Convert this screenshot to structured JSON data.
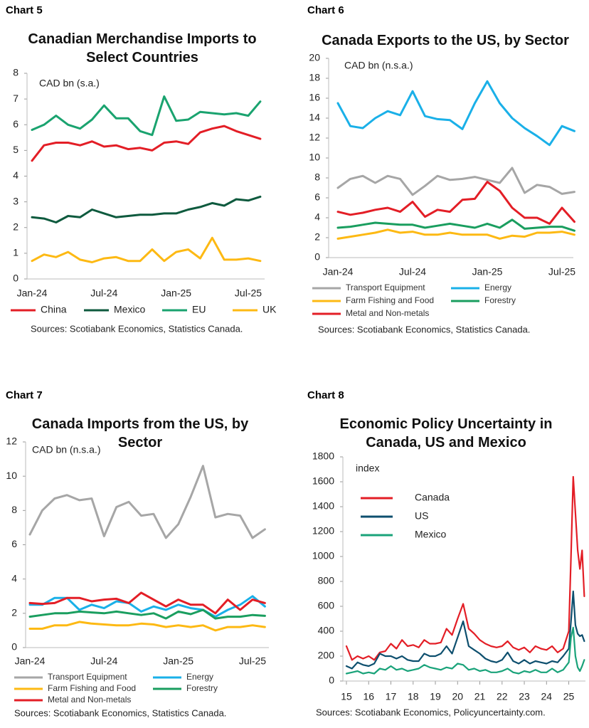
{
  "chart_data": [
    {
      "type": "line",
      "label": "Chart 5",
      "title": "Canadian Merchandise Imports to Select Countries",
      "unit": "CAD bn (s.a.)",
      "source": "Sources: Scotiabank Economics, Statistics Canada.",
      "categories": [
        "Jan-24",
        null,
        null,
        null,
        null,
        null,
        "Jul-24",
        null,
        null,
        null,
        null,
        null,
        "Jan-25",
        null,
        null,
        null,
        null,
        null,
        "Jul-25",
        null
      ],
      "ylim": [
        0,
        8
      ],
      "yticks": [
        0,
        1,
        2,
        3,
        4,
        5,
        6,
        7,
        8
      ],
      "series": [
        {
          "name": "China",
          "color": "#e31e26",
          "values": [
            4.6,
            5.2,
            5.3,
            5.3,
            5.2,
            5.35,
            5.15,
            5.2,
            5.05,
            5.1,
            5.0,
            5.3,
            5.35,
            5.25,
            5.7,
            5.85,
            5.95,
            5.75,
            5.6,
            5.45
          ]
        },
        {
          "name": "Mexico",
          "color": "#0e5a3e",
          "values": [
            2.4,
            2.35,
            2.2,
            2.45,
            2.4,
            2.7,
            2.55,
            2.4,
            2.45,
            2.5,
            2.5,
            2.55,
            2.55,
            2.7,
            2.8,
            2.95,
            2.85,
            3.1,
            3.05,
            3.2
          ]
        },
        {
          "name": "EU",
          "color": "#1aa36f",
          "values": [
            5.8,
            6.0,
            6.35,
            6.0,
            5.85,
            6.2,
            6.75,
            6.25,
            6.25,
            5.75,
            5.6,
            7.1,
            6.15,
            6.2,
            6.5,
            6.45,
            6.4,
            6.45,
            6.35,
            6.9
          ]
        },
        {
          "name": "UK",
          "color": "#fdb913",
          "values": [
            0.7,
            0.95,
            0.85,
            1.05,
            0.75,
            0.65,
            0.8,
            0.85,
            0.7,
            0.7,
            1.15,
            0.7,
            1.05,
            1.15,
            0.8,
            1.6,
            0.75,
            0.75,
            0.8,
            0.7
          ]
        }
      ]
    },
    {
      "type": "line",
      "label": "Chart 6",
      "title": "Canada Exports to the US, by Sector",
      "unit": "CAD bn (n.s.a.)",
      "source": "Sources: Scotiabank Economics, Statistics Canada.",
      "categories": [
        "Jan-24",
        null,
        null,
        null,
        null,
        null,
        "Jul-24",
        null,
        null,
        null,
        null,
        null,
        "Jan-25",
        null,
        null,
        null,
        null,
        null,
        "Jul-25",
        null
      ],
      "ylim": [
        0,
        20
      ],
      "yticks": [
        0,
        2,
        4,
        6,
        8,
        10,
        12,
        14,
        16,
        18,
        20
      ],
      "series": [
        {
          "name": "Transport Equipment",
          "color": "#a6a6a6",
          "values": [
            7.0,
            7.9,
            8.2,
            7.5,
            8.2,
            7.9,
            6.3,
            7.2,
            8.2,
            7.8,
            7.9,
            8.1,
            7.8,
            7.5,
            9.0,
            6.5,
            7.3,
            7.1,
            6.4,
            6.6
          ]
        },
        {
          "name": "Energy",
          "color": "#1ab0e8",
          "values": [
            15.5,
            13.2,
            13.0,
            14.0,
            14.7,
            14.3,
            16.7,
            14.2,
            13.9,
            13.8,
            12.9,
            15.5,
            17.7,
            15.5,
            14.0,
            13.0,
            12.2,
            11.3,
            13.2,
            12.7
          ]
        },
        {
          "name": "Farm Fishing and Food",
          "color": "#fdb913",
          "values": [
            1.9,
            2.1,
            2.3,
            2.5,
            2.8,
            2.5,
            2.6,
            2.3,
            2.3,
            2.5,
            2.3,
            2.3,
            2.3,
            1.9,
            2.2,
            2.1,
            2.5,
            2.5,
            2.6,
            2.3
          ]
        },
        {
          "name": "Forestry",
          "color": "#1a9e5f",
          "values": [
            3.0,
            3.1,
            3.3,
            3.5,
            3.4,
            3.3,
            3.3,
            3.0,
            3.2,
            3.4,
            3.2,
            3.0,
            3.4,
            3.0,
            3.8,
            2.9,
            3.0,
            3.1,
            3.1,
            2.7
          ]
        },
        {
          "name": "Metal and Non-metals",
          "color": "#e31e26",
          "values": [
            4.6,
            4.3,
            4.5,
            4.8,
            5.0,
            4.6,
            5.6,
            4.1,
            4.8,
            4.6,
            5.8,
            5.9,
            7.6,
            6.7,
            5.0,
            4.0,
            4.0,
            3.4,
            5.0,
            3.6
          ]
        }
      ]
    },
    {
      "type": "line",
      "label": "Chart 7",
      "title": "Canada Imports from the US, by Sector",
      "unit": "CAD bn (n.s.a.)",
      "source": "Sources: Scotiabank Economics, Statistics Canada.",
      "categories": [
        "Jan-24",
        null,
        null,
        null,
        null,
        null,
        "Jul-24",
        null,
        null,
        null,
        null,
        null,
        "Jan-25",
        null,
        null,
        null,
        null,
        null,
        "Jul-25",
        null
      ],
      "ylim": [
        0,
        12
      ],
      "yticks": [
        0,
        2,
        4,
        6,
        8,
        10,
        12
      ],
      "series": [
        {
          "name": "Transport Equipment",
          "color": "#a6a6a6",
          "values": [
            6.6,
            8.0,
            8.7,
            8.9,
            8.6,
            8.7,
            6.5,
            8.2,
            8.5,
            7.7,
            7.8,
            6.4,
            7.2,
            8.8,
            10.6,
            7.6,
            7.8,
            7.7,
            6.4,
            6.9
          ]
        },
        {
          "name": "Energy",
          "color": "#1ab0e8",
          "values": [
            2.5,
            2.5,
            2.9,
            2.9,
            2.2,
            2.5,
            2.3,
            2.7,
            2.6,
            2.1,
            2.4,
            2.2,
            2.5,
            2.3,
            2.2,
            1.8,
            2.2,
            2.5,
            3.0,
            2.4
          ]
        },
        {
          "name": "Farm Fishing and Food",
          "color": "#fdb913",
          "values": [
            1.1,
            1.1,
            1.3,
            1.3,
            1.5,
            1.4,
            1.35,
            1.3,
            1.3,
            1.4,
            1.35,
            1.2,
            1.3,
            1.2,
            1.3,
            1.0,
            1.2,
            1.2,
            1.3,
            1.2
          ]
        },
        {
          "name": "Forestry",
          "color": "#1a9e5f",
          "values": [
            1.8,
            1.9,
            2.0,
            2.0,
            2.1,
            2.05,
            2.0,
            2.1,
            2.0,
            1.9,
            2.0,
            1.7,
            2.1,
            1.95,
            2.2,
            1.7,
            1.8,
            1.8,
            1.9,
            1.85
          ]
        },
        {
          "name": "Metal and Non-metals",
          "color": "#e31e26",
          "values": [
            2.6,
            2.55,
            2.6,
            2.9,
            2.9,
            2.7,
            2.8,
            2.85,
            2.6,
            3.2,
            2.8,
            2.4,
            2.8,
            2.5,
            2.5,
            2.0,
            2.8,
            2.2,
            2.8,
            2.6
          ]
        }
      ]
    },
    {
      "type": "line",
      "label": "Chart 8",
      "title": "Economic Policy Uncertainty in Canada, US and Mexico",
      "unit": "index",
      "source": "Sources: Scotiabank Economics, Policyuncertainty.com.",
      "x": [
        2015,
        2015.25,
        2015.5,
        2015.75,
        2016,
        2016.25,
        2016.5,
        2016.75,
        2017,
        2017.25,
        2017.5,
        2017.75,
        2018,
        2018.25,
        2018.5,
        2018.75,
        2019,
        2019.25,
        2019.5,
        2019.75,
        2020,
        2020.25,
        2020.5,
        2020.75,
        2021,
        2021.25,
        2021.5,
        2021.75,
        2022,
        2022.25,
        2022.5,
        2022.75,
        2023,
        2023.25,
        2023.5,
        2023.75,
        2024,
        2024.25,
        2024.5,
        2024.75,
        2025,
        2025.1,
        2025.2,
        2025.3,
        2025.4,
        2025.5,
        2025.6,
        2025.7
      ],
      "xlim": [
        2015,
        2025.75
      ],
      "xticks": [
        {
          "value": 2015,
          "label": "15"
        },
        {
          "value": 2016,
          "label": "16"
        },
        {
          "value": 2017,
          "label": "17"
        },
        {
          "value": 2018,
          "label": "18"
        },
        {
          "value": 2019,
          "label": "19"
        },
        {
          "value": 2020,
          "label": "20"
        },
        {
          "value": 2021,
          "label": "21"
        },
        {
          "value": 2022,
          "label": "22"
        },
        {
          "value": 2023,
          "label": "23"
        },
        {
          "value": 2024,
          "label": "24"
        },
        {
          "value": 2025,
          "label": "25"
        }
      ],
      "ylim": [
        0,
        1800
      ],
      "yticks": [
        0,
        200,
        400,
        600,
        800,
        1000,
        1200,
        1400,
        1600,
        1800
      ],
      "series": [
        {
          "name": "Canada",
          "color": "#e31e26",
          "values": [
            280,
            170,
            200,
            180,
            200,
            170,
            230,
            240,
            300,
            260,
            330,
            280,
            290,
            270,
            330,
            300,
            300,
            310,
            420,
            370,
            500,
            620,
            420,
            380,
            330,
            300,
            280,
            270,
            280,
            320,
            270,
            250,
            270,
            230,
            280,
            260,
            250,
            280,
            230,
            260,
            400,
            1000,
            1640,
            1350,
            1050,
            900,
            1050,
            680
          ]
        },
        {
          "name": "US",
          "color": "#0d4f6e",
          "values": [
            120,
            100,
            150,
            130,
            120,
            140,
            220,
            200,
            200,
            180,
            200,
            170,
            160,
            160,
            220,
            200,
            200,
            220,
            280,
            220,
            350,
            480,
            280,
            250,
            220,
            180,
            160,
            150,
            170,
            230,
            160,
            140,
            170,
            140,
            160,
            150,
            140,
            160,
            150,
            200,
            260,
            480,
            720,
            450,
            380,
            360,
            370,
            320
          ]
        },
        {
          "name": "Mexico",
          "color": "#1aa37a",
          "values": [
            60,
            70,
            80,
            60,
            70,
            60,
            100,
            90,
            120,
            90,
            100,
            80,
            90,
            100,
            130,
            110,
            100,
            90,
            110,
            100,
            140,
            130,
            90,
            100,
            80,
            90,
            70,
            70,
            80,
            100,
            70,
            60,
            80,
            70,
            90,
            70,
            70,
            100,
            70,
            90,
            150,
            350,
            430,
            200,
            110,
            80,
            120,
            170
          ]
        }
      ]
    }
  ]
}
